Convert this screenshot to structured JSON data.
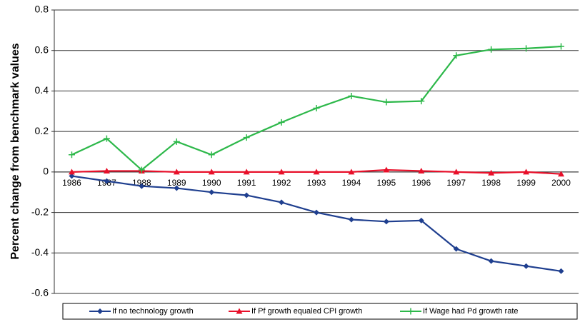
{
  "chart_data": {
    "type": "line",
    "y_label": "Percent change from benchmark values",
    "categories": [
      "1986",
      "1987",
      "1988",
      "1989",
      "1990",
      "1991",
      "1992",
      "1993",
      "1994",
      "1995",
      "1996",
      "1997",
      "1998",
      "1999",
      "2000"
    ],
    "series": [
      {
        "name": "If no technology growth",
        "color": "#1f3f8f",
        "marker": "diamond",
        "values": [
          -0.02,
          -0.045,
          -0.07,
          -0.08,
          -0.1,
          -0.115,
          -0.15,
          -0.2,
          -0.235,
          -0.245,
          -0.24,
          -0.38,
          -0.44,
          -0.465,
          -0.49
        ]
      },
      {
        "name": "If Pf growth equaled CPI growth",
        "color": "#e8102a",
        "marker": "triangle",
        "values": [
          0,
          0.005,
          0.005,
          0,
          0,
          0,
          0,
          0,
          0,
          0.01,
          0.005,
          0,
          -0.005,
          0,
          -0.01
        ]
      },
      {
        "name": "If Wage had Pd growth rate",
        "color": "#2db84a",
        "marker": "plus",
        "values": [
          0.085,
          0.165,
          0.01,
          0.15,
          0.085,
          0.17,
          0.245,
          0.315,
          0.375,
          0.345,
          0.35,
          0.575,
          0.605,
          0.61,
          0.62
        ]
      }
    ],
    "ylim": [
      -0.6,
      0.8
    ],
    "yticks": [
      -0.6,
      -0.4,
      -0.2,
      0,
      0.2,
      0.4,
      0.6,
      0.8
    ],
    "grid": true
  }
}
